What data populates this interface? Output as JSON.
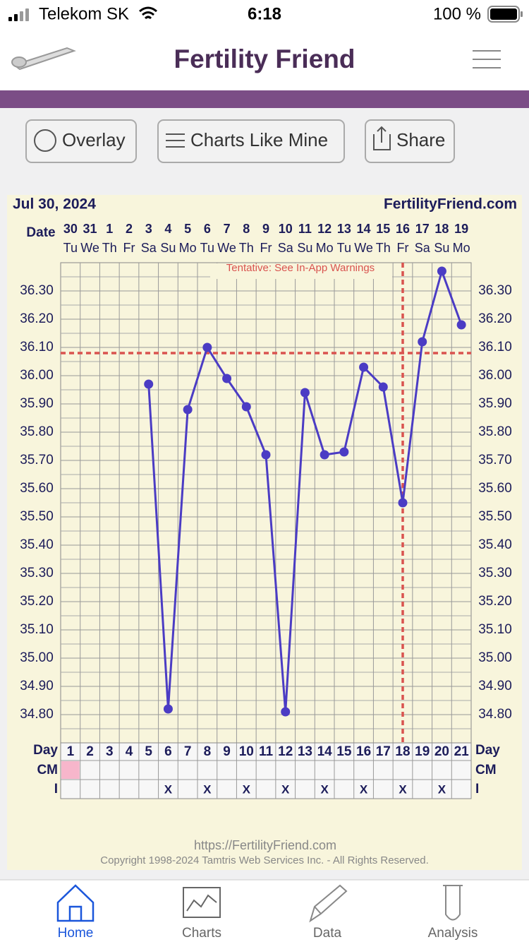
{
  "status_bar": {
    "carrier": "Telekom SK",
    "time": "6:18",
    "battery": "100 %"
  },
  "header": {
    "title": "Fertility Friend"
  },
  "toolbar": {
    "buttons": [
      "Overlay",
      "Charts Like Mine",
      "Share"
    ]
  },
  "chart_data": {
    "type": "line",
    "date_label": "Jul 30, 2024",
    "site_label": "FertilityFriend.com",
    "annotation": "Tentative: See In-App Warnings",
    "row_labels": {
      "date": "Date",
      "day": "Day",
      "cm": "CM",
      "intercourse": "I"
    },
    "categories": [
      "1",
      "2",
      "3",
      "4",
      "5",
      "6",
      "7",
      "8",
      "9",
      "10",
      "11",
      "12",
      "13",
      "14",
      "15",
      "16",
      "17",
      "18",
      "19",
      "20",
      "21"
    ],
    "dates": [
      "30",
      "31",
      "1",
      "2",
      "3",
      "4",
      "5",
      "6",
      "7",
      "8",
      "9",
      "10",
      "11",
      "12",
      "13",
      "14",
      "15",
      "16",
      "17",
      "18",
      "19"
    ],
    "weekdays": [
      "Tu",
      "We",
      "Th",
      "Fr",
      "Sa",
      "Su",
      "Mo",
      "Tu",
      "We",
      "Th",
      "Fr",
      "Sa",
      "Su",
      "Mo",
      "Tu",
      "We",
      "Th",
      "Fr",
      "Sa",
      "Su",
      "Mo"
    ],
    "series": [
      {
        "name": "Temperature",
        "color": "#4b3cc4",
        "values": [
          null,
          null,
          null,
          null,
          35.97,
          34.82,
          35.88,
          36.1,
          35.99,
          35.89,
          35.72,
          34.81,
          35.94,
          35.72,
          35.73,
          36.03,
          35.96,
          35.55,
          36.12,
          36.37,
          36.18
        ]
      }
    ],
    "cm": [
      "#f7b6cb",
      null,
      null,
      null,
      null,
      null,
      null,
      null,
      null,
      null,
      null,
      null,
      null,
      null,
      null,
      null,
      null,
      null,
      null,
      null,
      null
    ],
    "intercourse": [
      null,
      null,
      null,
      null,
      null,
      "X",
      null,
      "X",
      null,
      "X",
      null,
      "X",
      null,
      "X",
      null,
      "X",
      null,
      "X",
      null,
      "X",
      null
    ],
    "coverline": 36.08,
    "vertical_line_category": "18",
    "reference_color": "#d9534f",
    "ylim": [
      34.7,
      36.4
    ],
    "yticks": [
      {
        "value": 34.8,
        "label": "34.80"
      },
      {
        "value": 34.9,
        "label": "34.90"
      },
      {
        "value": 35,
        "label": "35.00"
      },
      {
        "value": 35.1,
        "label": "35.10"
      },
      {
        "value": 35.2,
        "label": "35.20"
      },
      {
        "value": 35.3,
        "label": "35.30"
      },
      {
        "value": 35.4,
        "label": "35.40"
      },
      {
        "value": 35.5,
        "label": "35.50"
      },
      {
        "value": 35.6,
        "label": "35.60"
      },
      {
        "value": 35.7,
        "label": "35.70"
      },
      {
        "value": 35.8,
        "label": "35.80"
      },
      {
        "value": 35.9,
        "label": "35.90"
      },
      {
        "value": 36,
        "label": "36.00"
      },
      {
        "value": 36.1,
        "label": "36.10"
      },
      {
        "value": 36.2,
        "label": "36.20"
      },
      {
        "value": 36.3,
        "label": "36.30"
      }
    ],
    "grid": true
  },
  "footer": {
    "url": "https://FertilityFriend.com",
    "copyright": "Copyright 1998-2024 Tamtris Web Services Inc. - All Rights Reserved."
  },
  "tabs": [
    "Home",
    "Charts",
    "Data",
    "Analysis"
  ]
}
